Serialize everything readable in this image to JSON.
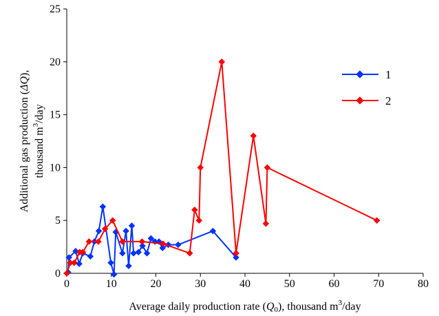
{
  "chart_data": {
    "type": "line",
    "title": "",
    "xlabel_parts": {
      "before": "Average daily production rate (",
      "symbol": "Q",
      "subscript": "0",
      "middle": "), thousand m",
      "sup": "3",
      "after": "/day"
    },
    "ylabel_parts": {
      "line1_before": "Additional gas production (",
      "line1_symbol": "ΔQ",
      "line1_after": "),",
      "line2_before": "thousand m",
      "line2_sup": "3",
      "line2_after": "/day"
    },
    "xlim": [
      0,
      80
    ],
    "ylim": [
      0,
      25
    ],
    "xticks": [
      "0",
      "10",
      "20",
      "30",
      "40",
      "50",
      "60",
      "70",
      "80"
    ],
    "yticks": [
      "0",
      "5",
      "10",
      "15",
      "20",
      "25"
    ],
    "grid": false,
    "legend_position": "top-right",
    "series": [
      {
        "name": "1",
        "color": "#0033FF",
        "marker": "diamond",
        "points": [
          [
            0.3,
            0.1
          ],
          [
            0.5,
            1.5
          ],
          [
            2.0,
            2.1
          ],
          [
            2.8,
            0.9
          ],
          [
            3.6,
            1.9
          ],
          [
            5.3,
            1.6
          ],
          [
            6.2,
            3.0
          ],
          [
            7.2,
            4.0
          ],
          [
            8.1,
            6.3
          ],
          [
            9.9,
            1.0
          ],
          [
            10.6,
            -0.1
          ],
          [
            11.0,
            3.9
          ],
          [
            12.5,
            1.9
          ],
          [
            13.3,
            4.0
          ],
          [
            13.9,
            0.7
          ],
          [
            14.6,
            4.5
          ],
          [
            15.0,
            1.9
          ],
          [
            16.1,
            2.0
          ],
          [
            17.0,
            2.6
          ],
          [
            18.0,
            1.9
          ],
          [
            18.9,
            3.3
          ],
          [
            19.8,
            3.0
          ],
          [
            20.7,
            3.0
          ],
          [
            21.5,
            2.4
          ],
          [
            22.8,
            2.7
          ],
          [
            25.0,
            2.7
          ],
          [
            32.8,
            4.0
          ],
          [
            38.0,
            1.5
          ]
        ]
      },
      {
        "name": "2",
        "color": "#FF0000",
        "marker": "diamond",
        "points": [
          [
            0.0,
            0.0
          ],
          [
            0.8,
            1.0
          ],
          [
            1.7,
            1.0
          ],
          [
            2.9,
            2.0
          ],
          [
            3.6,
            2.0
          ],
          [
            5.0,
            3.0
          ],
          [
            7.1,
            3.0
          ],
          [
            8.6,
            4.2
          ],
          [
            10.3,
            5.0
          ],
          [
            12.5,
            3.0
          ],
          [
            16.9,
            3.0
          ],
          [
            21.6,
            2.8
          ],
          [
            27.6,
            1.9
          ],
          [
            28.7,
            6.0
          ],
          [
            29.7,
            5.0
          ],
          [
            30.0,
            10.0
          ],
          [
            34.8,
            20.0
          ],
          [
            38.0,
            1.9
          ],
          [
            41.9,
            13.0
          ],
          [
            44.7,
            4.7
          ],
          [
            45.0,
            10.0
          ],
          [
            69.6,
            5.0
          ]
        ]
      }
    ]
  }
}
